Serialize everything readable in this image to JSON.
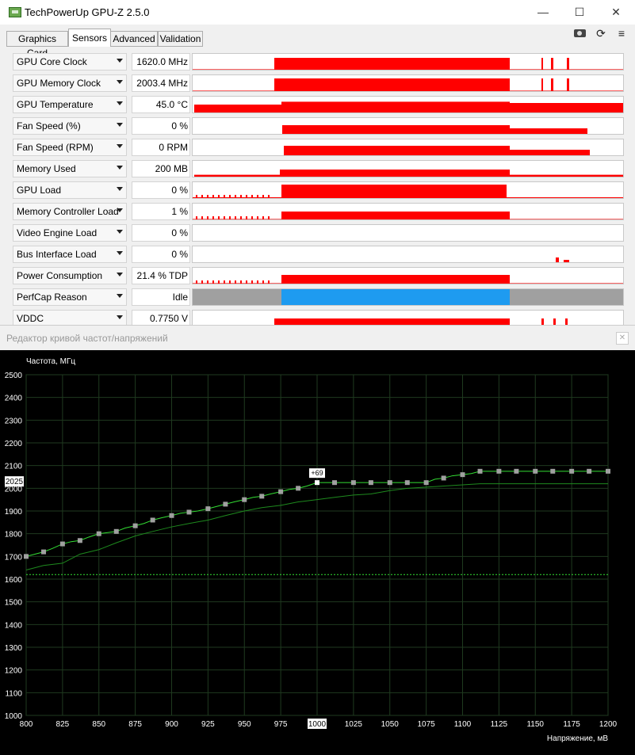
{
  "window": {
    "title": "TechPowerUp GPU-Z 2.5.0",
    "controls": {
      "minimize": "—",
      "maximize": "☐",
      "close": "✕"
    }
  },
  "tabs": [
    {
      "label": "Graphics Card",
      "active": false
    },
    {
      "label": "Sensors",
      "active": true
    },
    {
      "label": "Advanced",
      "active": false
    },
    {
      "label": "Validation",
      "active": false
    }
  ],
  "toolbar": {
    "refresh_glyph": "⟳",
    "menu_glyph": "≡"
  },
  "sensors": [
    {
      "label": "GPU Core Clock",
      "value": "1620.0 MHz"
    },
    {
      "label": "GPU Memory Clock",
      "value": "2003.4 MHz"
    },
    {
      "label": "GPU Temperature",
      "value": "45.0 °C"
    },
    {
      "label": "Fan Speed (%)",
      "value": "0 %"
    },
    {
      "label": "Fan Speed (RPM)",
      "value": "0 RPM"
    },
    {
      "label": "Memory Used",
      "value": "200 MB"
    },
    {
      "label": "GPU Load",
      "value": "0 %"
    },
    {
      "label": "Memory Controller Load",
      "value": "1 %"
    },
    {
      "label": "Video Engine Load",
      "value": "0 %"
    },
    {
      "label": "Bus Interface Load",
      "value": "0 %"
    },
    {
      "label": "Power Consumption",
      "value": "21.4 % TDP"
    },
    {
      "label": "PerfCap Reason",
      "value": "Idle"
    },
    {
      "label": "VDDC",
      "value": "0.7750 V"
    }
  ],
  "colors": {
    "graph": "#ff0000",
    "perfcap_idle": "#a0a0a0",
    "perfcap_active": "#1e9bf0",
    "curve": "#33dd33",
    "points": "#a0a0a0"
  },
  "editor": {
    "title": "Редактор кривой частот/напряжений",
    "close": "✕"
  },
  "chart_data": {
    "type": "line",
    "ylabel": "Частота, МГц",
    "xlabel": "Напряжение, мВ",
    "xlim": [
      800,
      1200
    ],
    "ylim": [
      1000,
      2500
    ],
    "x_ticks": [
      800,
      825,
      850,
      875,
      900,
      925,
      950,
      975,
      1000,
      1025,
      1050,
      1075,
      1100,
      1125,
      1150,
      1175,
      1200
    ],
    "y_ticks": [
      1000,
      1100,
      1200,
      1300,
      1400,
      1500,
      1600,
      1700,
      1800,
      1900,
      2000,
      2100,
      2200,
      2300,
      2400,
      2500
    ],
    "highlight_x": 1000,
    "current_y_label": "2025",
    "current_frequency": 1620,
    "selected_point": {
      "x": 1000,
      "y": 2025,
      "label": "+69"
    },
    "series": [
      {
        "x": [
          800,
          806,
          812,
          818,
          825,
          831,
          837,
          843,
          850,
          856,
          862,
          868,
          875,
          881,
          887,
          893,
          900,
          906,
          912,
          918,
          925,
          931,
          937,
          943,
          950,
          956,
          962,
          968,
          975,
          981,
          987,
          993,
          1000,
          1006,
          1012,
          1018,
          1025,
          1031,
          1037,
          1043,
          1050,
          1056,
          1062,
          1068,
          1075,
          1081,
          1087,
          1093,
          1100,
          1106,
          1112,
          1118,
          1125,
          1131,
          1137,
          1143,
          1150,
          1156,
          1162,
          1168,
          1175,
          1181,
          1187,
          1193,
          1200
        ],
        "y": [
          1700,
          1710,
          1720,
          1735,
          1755,
          1765,
          1770,
          1785,
          1800,
          1805,
          1810,
          1825,
          1835,
          1845,
          1860,
          1870,
          1880,
          1890,
          1895,
          1900,
          1910,
          1920,
          1930,
          1940,
          1950,
          1960,
          1965,
          1975,
          1985,
          1995,
          2000,
          2010,
          2025,
          2025,
          2025,
          2025,
          2025,
          2025,
          2025,
          2025,
          2025,
          2025,
          2025,
          2025,
          2025,
          2040,
          2045,
          2055,
          2060,
          2065,
          2075,
          2075,
          2075,
          2075,
          2075,
          2075,
          2075,
          2075,
          2075,
          2075,
          2075,
          2075,
          2075,
          2075,
          2075
        ]
      },
      {
        "x": [
          800,
          812,
          825,
          837,
          850,
          862,
          875,
          887,
          900,
          912,
          925,
          937,
          950,
          962,
          975,
          987,
          1000,
          1012,
          1025,
          1037,
          1050,
          1062,
          1075,
          1087,
          1100,
          1112,
          1125,
          1137,
          1150,
          1162,
          1175,
          1187,
          1200
        ],
        "y": [
          1640,
          1660,
          1670,
          1710,
          1730,
          1760,
          1790,
          1810,
          1830,
          1845,
          1860,
          1880,
          1900,
          1915,
          1925,
          1940,
          1950,
          1960,
          1970,
          1975,
          1990,
          2000,
          2005,
          2010,
          2015,
          2020,
          2020,
          2020,
          2020,
          2020,
          2020,
          2020,
          2020
        ]
      }
    ]
  }
}
